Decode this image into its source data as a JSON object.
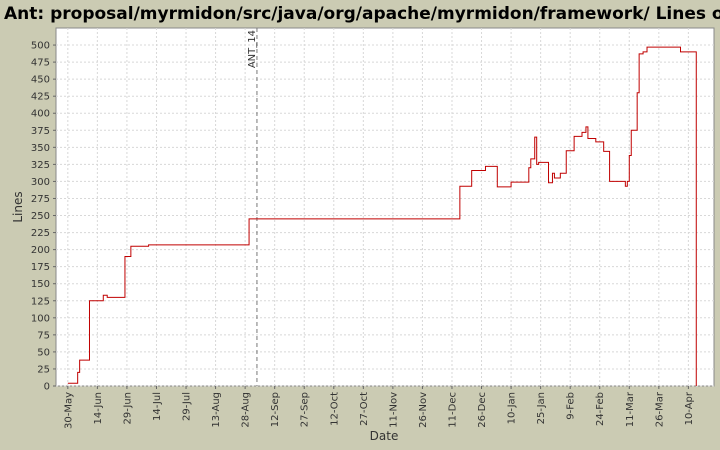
{
  "chart_data": {
    "type": "step-line",
    "title": "Ant: proposal/myrmidon/src/java/org/apache/myrmidon/framework/ Lines of Code",
    "x_label": "Date",
    "y_label": "Lines",
    "color": "#c00000",
    "x": [
      "30-May",
      "4-Jun",
      "5-Jun",
      "10-Jun",
      "17-Jun",
      "19-Jun",
      "28-Jun",
      "1-Jul",
      "10-Jul",
      "30-Aug",
      "15-Dec",
      "21-Dec",
      "28-Dec",
      "3-Jan",
      "10-Jan",
      "19-Jan",
      "20-Jan",
      "22-Jan",
      "23-Jan",
      "24-Jan",
      "29-Jan",
      "31-Jan",
      "1-Feb",
      "4-Feb",
      "7-Feb",
      "11-Feb",
      "15-Feb",
      "17-Feb",
      "18-Feb",
      "22-Feb",
      "26-Feb",
      "1-Mar",
      "9-Mar",
      "10-Mar",
      "11-Mar",
      "12-Mar",
      "15-Mar",
      "16-Mar",
      "18-Mar",
      "20-Mar",
      "6-Apr",
      "14-Apr"
    ],
    "values": [
      4,
      20,
      38,
      125,
      133,
      130,
      190,
      205,
      207,
      245,
      293,
      316,
      322,
      292,
      299,
      320,
      333,
      365,
      325,
      328,
      298,
      312,
      305,
      312,
      345,
      366,
      372,
      380,
      363,
      358,
      344,
      300,
      293,
      300,
      338,
      375,
      430,
      487,
      490,
      497,
      490,
      0
    ],
    "xlim": [
      "24-May",
      "23-Apr"
    ],
    "xticks": [
      "30-May",
      "14-Jun",
      "29-Jun",
      "14-Jul",
      "29-Jul",
      "13-Aug",
      "28-Aug",
      "12-Sep",
      "27-Sep",
      "12-Oct",
      "27-Oct",
      "11-Nov",
      "26-Nov",
      "11-Dec",
      "26-Dec",
      "10-Jan",
      "25-Jan",
      "9-Feb",
      "24-Feb",
      "11-Mar",
      "26-Mar",
      "10-Apr"
    ],
    "ylim": [
      0,
      525
    ],
    "yticks": [
      0,
      25,
      50,
      75,
      100,
      125,
      150,
      175,
      200,
      225,
      250,
      275,
      300,
      325,
      350,
      375,
      400,
      425,
      450,
      475,
      500
    ],
    "grid": true,
    "markers": [
      {
        "x": "3-Sep",
        "label": "ANT_14"
      }
    ]
  }
}
